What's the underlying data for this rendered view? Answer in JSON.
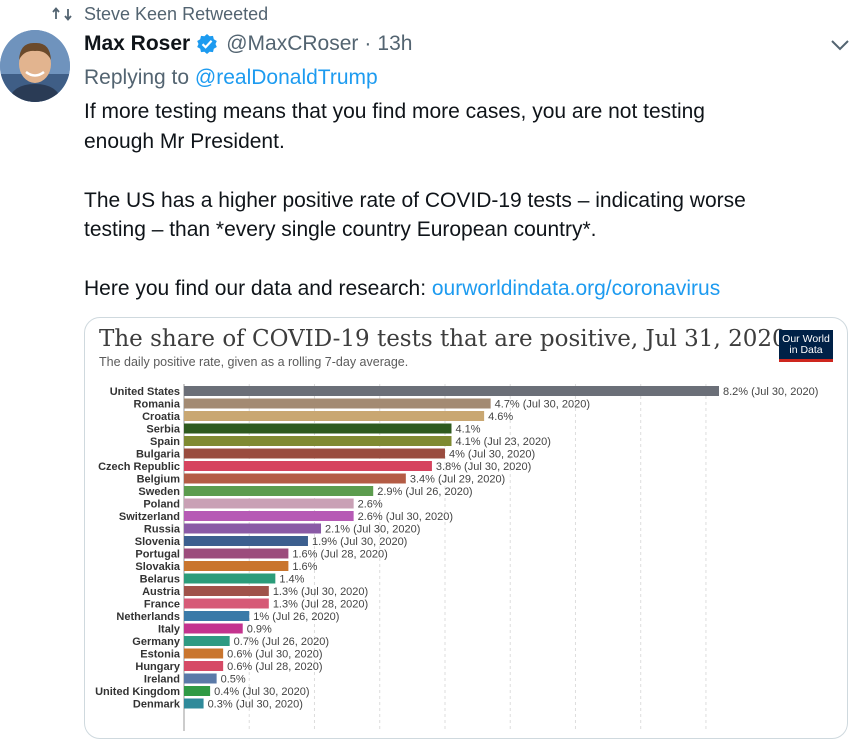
{
  "retweet": {
    "text": "Steve Keen Retweeted",
    "icon": "retweet-icon"
  },
  "author": {
    "name": "Max Roser",
    "handle": "@MaxCRoser",
    "separator": "·",
    "time": "13h",
    "verified_color": "#1d9bf0"
  },
  "reply": {
    "prefix": "Replying to ",
    "mention": "@realDonaldTrump"
  },
  "tweet": {
    "line1": "If more testing means that you find more cases, you are not testing",
    "line2": "enough Mr President.",
    "line3": "The US has a higher positive rate of COVID-19 tests – indicating worse",
    "line4": "testing – than *every single country European country*.",
    "line5_prefix": "Here you find our data and research: ",
    "link": "ourworldindata.org/coronavirus"
  },
  "colors": {
    "accent": "#1d9bf0",
    "muted": "#536471",
    "text": "#0f1419"
  },
  "chart_logo": {
    "line1": "Our World",
    "line2": "in Data"
  },
  "chart_data": {
    "type": "bar",
    "orientation": "horizontal",
    "title": "The share of COVID-19 tests that are positive, Jul 31, 2020",
    "subtitle": "The daily positive rate, given as a rolling 7-day average.",
    "grid": true,
    "xlim": [
      0,
      8.2
    ],
    "bars": [
      {
        "country": "United States",
        "value": 8.2,
        "label": "8.2% (Jul 30, 2020)",
        "color": "#6b6f78"
      },
      {
        "country": "Romania",
        "value": 4.7,
        "label": "4.7% (Jul 30, 2020)",
        "color": "#a38a72"
      },
      {
        "country": "Croatia",
        "value": 4.6,
        "label": "4.6%",
        "color": "#c9a772"
      },
      {
        "country": "Serbia",
        "value": 4.1,
        "label": "4.1%",
        "color": "#2e5a1e"
      },
      {
        "country": "Spain",
        "value": 4.1,
        "label": "4.1% (Jul 23, 2020)",
        "color": "#7f8a32"
      },
      {
        "country": "Bulgaria",
        "value": 4.0,
        "label": "4% (Jul 30, 2020)",
        "color": "#9a4c3f"
      },
      {
        "country": "Czech Republic",
        "value": 3.8,
        "label": "3.8% (Jul 30, 2020)",
        "color": "#d6435e"
      },
      {
        "country": "Belgium",
        "value": 3.4,
        "label": "3.4% (Jul 29, 2020)",
        "color": "#b45c45"
      },
      {
        "country": "Sweden",
        "value": 2.9,
        "label": "2.9% (Jul 26, 2020)",
        "color": "#5c9c4e"
      },
      {
        "country": "Poland",
        "value": 2.6,
        "label": "2.6%",
        "color": "#c9a0b5"
      },
      {
        "country": "Switzerland",
        "value": 2.6,
        "label": "2.6% (Jul 30, 2020)",
        "color": "#b65ab5"
      },
      {
        "country": "Russia",
        "value": 2.1,
        "label": "2.1% (Jul 30, 2020)",
        "color": "#8a5aa6"
      },
      {
        "country": "Slovenia",
        "value": 1.9,
        "label": "1.9% (Jul 30, 2020)",
        "color": "#3c5f8f"
      },
      {
        "country": "Portugal",
        "value": 1.6,
        "label": "1.6% (Jul 28, 2020)",
        "color": "#9c4c7c"
      },
      {
        "country": "Slovakia",
        "value": 1.6,
        "label": "1.6%",
        "color": "#c9752e"
      },
      {
        "country": "Belarus",
        "value": 1.4,
        "label": "1.4%",
        "color": "#2b9c7a"
      },
      {
        "country": "Austria",
        "value": 1.3,
        "label": "1.3% (Jul 30, 2020)",
        "color": "#a0524a"
      },
      {
        "country": "France",
        "value": 1.3,
        "label": "1.3% (Jul 28, 2020)",
        "color": "#d65a77"
      },
      {
        "country": "Netherlands",
        "value": 1.0,
        "label": "1% (Jul 26, 2020)",
        "color": "#3a7aa8"
      },
      {
        "country": "Italy",
        "value": 0.9,
        "label": "0.9%",
        "color": "#c4338e"
      },
      {
        "country": "Germany",
        "value": 0.7,
        "label": "0.7% (Jul 26, 2020)",
        "color": "#2f9a82"
      },
      {
        "country": "Estonia",
        "value": 0.6,
        "label": "0.6% (Jul 30, 2020)",
        "color": "#c9752e"
      },
      {
        "country": "Hungary",
        "value": 0.6,
        "label": "0.6% (Jul 28, 2020)",
        "color": "#d64a66"
      },
      {
        "country": "Ireland",
        "value": 0.5,
        "label": "0.5%",
        "color": "#5a7aa8"
      },
      {
        "country": "United Kingdom",
        "value": 0.4,
        "label": "0.4% (Jul 30, 2020)",
        "color": "#2f9a45"
      },
      {
        "country": "Denmark",
        "value": 0.3,
        "label": "0.3% (Jul 30, 2020)",
        "color": "#2f8a9a"
      }
    ]
  }
}
